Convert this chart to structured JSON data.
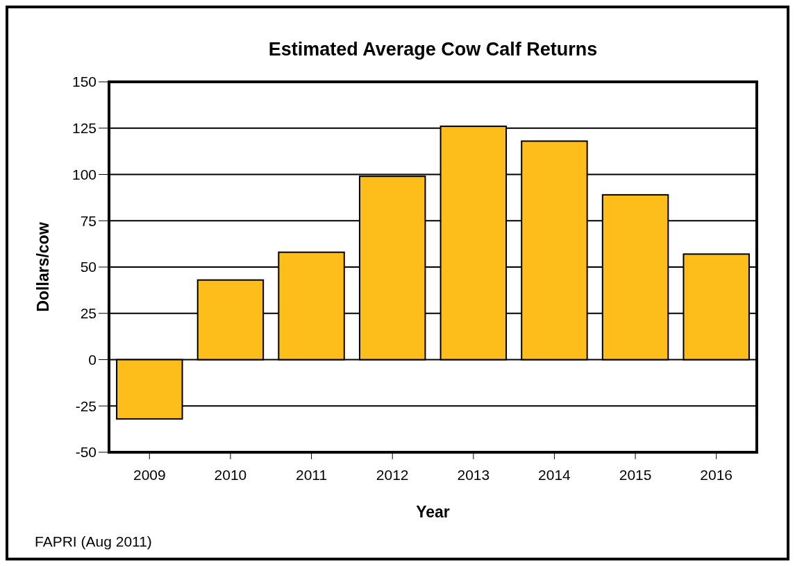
{
  "chart_data": {
    "type": "bar",
    "title": "Estimated Average Cow Calf Returns",
    "xlabel": "Year",
    "ylabel": "Dollars/cow",
    "categories": [
      "2009",
      "2010",
      "2011",
      "2012",
      "2013",
      "2014",
      "2015",
      "2016"
    ],
    "values": [
      -32,
      43,
      58,
      99,
      126,
      118,
      89,
      57
    ],
    "color": "#fdbd1a",
    "ylim": [
      -50,
      150
    ],
    "yticks": [
      -50,
      -25,
      0,
      25,
      50,
      75,
      100,
      125,
      150
    ],
    "grid": "y",
    "annotations": [
      "FAPRI (Aug 2011)"
    ]
  }
}
